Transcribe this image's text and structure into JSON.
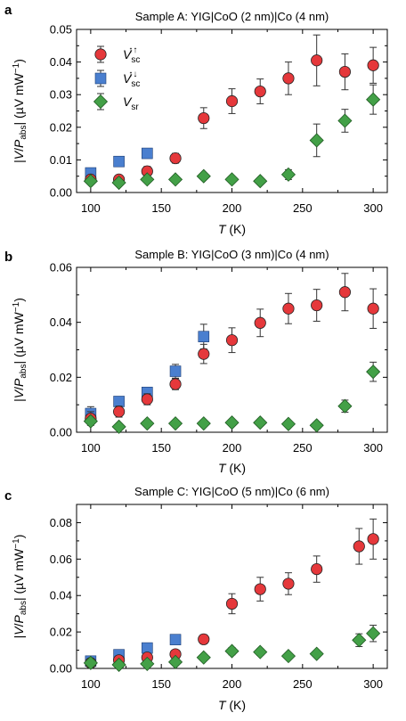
{
  "colors": {
    "red": "#e5383b",
    "blue": "#4a7fcf",
    "green": "#43a047"
  },
  "legend": [
    {
      "series": "sc_parallel",
      "label": "V",
      "sub": "sc",
      "sup": "↑↑",
      "marker": "circle",
      "color": "#e5383b"
    },
    {
      "series": "sc_anti",
      "label": "V",
      "sub": "sc",
      "sup": "↑↓",
      "marker": "square",
      "color": "#4a7fcf"
    },
    {
      "series": "sr",
      "label": "V",
      "sub": "sr",
      "sup": "",
      "marker": "diamond",
      "color": "#43a047"
    }
  ],
  "chart_data": [
    {
      "type": "scatter",
      "panel": "a",
      "title": "Sample A: YIG|CoO (2 nm)|Co (4 nm)",
      "xlabel": "T (K)",
      "ylabel": "|V/Pabs| (µV mW−1)",
      "xlim": [
        90,
        310
      ],
      "ylim": [
        0,
        0.05
      ],
      "xticks": [
        100,
        150,
        200,
        250,
        300
      ],
      "yticks": [
        0.0,
        0.01,
        0.02,
        0.03,
        0.04,
        0.05
      ],
      "ytick_labels": [
        "0.00",
        "0.01",
        "0.02",
        "0.03",
        "0.04",
        "0.05"
      ],
      "legend": true,
      "series": [
        {
          "id": "sc_parallel",
          "x": [
            100,
            120,
            140,
            160,
            180,
            200,
            220,
            240,
            260,
            280,
            300
          ],
          "y": [
            0.004,
            0.004,
            0.0065,
            0.0105,
            0.0228,
            0.028,
            0.031,
            0.035,
            0.0405,
            0.037,
            0.039
          ],
          "err": [
            0.001,
            0.001,
            0.0015,
            0.0015,
            0.0032,
            0.0038,
            0.0038,
            0.005,
            0.0078,
            0.0055,
            0.0055
          ]
        },
        {
          "id": "sc_anti",
          "x": [
            100,
            120,
            140
          ],
          "y": [
            0.006,
            0.0095,
            0.012
          ],
          "err": [
            0.0005,
            0.0005,
            0.0005
          ]
        },
        {
          "id": "sr",
          "x": [
            100,
            120,
            140,
            160,
            180,
            200,
            220,
            240,
            260,
            280,
            300
          ],
          "y": [
            0.0035,
            0.003,
            0.004,
            0.004,
            0.005,
            0.004,
            0.0035,
            0.0055,
            0.016,
            0.022,
            0.0285
          ],
          "err": [
            0.0005,
            0.0005,
            0.0005,
            0.0005,
            0.0005,
            0.0005,
            0.0005,
            0.0015,
            0.005,
            0.0035,
            0.0045
          ]
        }
      ]
    },
    {
      "type": "scatter",
      "panel": "b",
      "title": "Sample B: YIG|CoO (3 nm)|Co (4 nm)",
      "xlabel": "T (K)",
      "ylabel": "|V/Pabs| (µV mW−1)",
      "xlim": [
        90,
        310
      ],
      "ylim": [
        0,
        0.06
      ],
      "xticks": [
        100,
        150,
        200,
        250,
        300
      ],
      "yticks": [
        0.0,
        0.02,
        0.04,
        0.06
      ],
      "ytick_labels": [
        "0.00",
        "0.02",
        "0.04",
        "0.06"
      ],
      "legend": false,
      "series": [
        {
          "id": "sc_parallel",
          "x": [
            100,
            120,
            140,
            160,
            180,
            200,
            220,
            240,
            260,
            280,
            300
          ],
          "y": [
            0.005,
            0.0075,
            0.012,
            0.0175,
            0.0285,
            0.0335,
            0.0398,
            0.045,
            0.0462,
            0.051,
            0.045
          ],
          "err": [
            0.0025,
            0.002,
            0.002,
            0.002,
            0.0035,
            0.0045,
            0.005,
            0.0055,
            0.0058,
            0.0068,
            0.0072
          ]
        },
        {
          "id": "sc_anti",
          "x": [
            100,
            120,
            140,
            160,
            180
          ],
          "y": [
            0.0068,
            0.0112,
            0.0145,
            0.0222,
            0.0348
          ],
          "err": [
            0.0025,
            0.001,
            0.0015,
            0.0025,
            0.0045
          ]
        },
        {
          "id": "sr",
          "x": [
            100,
            120,
            140,
            160,
            180,
            200,
            220,
            240,
            260,
            280,
            300
          ],
          "y": [
            0.004,
            0.002,
            0.0032,
            0.0032,
            0.0032,
            0.0035,
            0.0035,
            0.003,
            0.0025,
            0.0095,
            0.022
          ],
          "err": [
            0.0008,
            0.0005,
            0.0008,
            0.0005,
            0.0005,
            0.0008,
            0.0008,
            0.0005,
            0.0005,
            0.0022,
            0.0035
          ]
        }
      ]
    },
    {
      "type": "scatter",
      "panel": "c",
      "title": "Sample C: YIG|CoO (5 nm)|Co (6 nm)",
      "xlabel": "T (K)",
      "ylabel": "|V/Pabs| (µV mW−1)",
      "xlim": [
        90,
        310
      ],
      "ylim": [
        0,
        0.09
      ],
      "xticks": [
        100,
        150,
        200,
        250,
        300
      ],
      "yticks": [
        0.0,
        0.02,
        0.04,
        0.06,
        0.08
      ],
      "ytick_labels": [
        "0.00",
        "0.02",
        "0.04",
        "0.06",
        "0.08"
      ],
      "legend": false,
      "series": [
        {
          "id": "sc_parallel",
          "x": [
            100,
            120,
            140,
            160,
            180,
            200,
            220,
            240,
            260,
            290,
            300
          ],
          "y": [
            0.003,
            0.0045,
            0.006,
            0.0078,
            0.016,
            0.0355,
            0.0435,
            0.0465,
            0.0545,
            0.067,
            0.071
          ],
          "err": [
            0.0008,
            0.001,
            0.001,
            0.0012,
            0.0025,
            0.0055,
            0.0065,
            0.006,
            0.0072,
            0.0098,
            0.011
          ]
        },
        {
          "id": "sc_anti",
          "x": [
            100,
            120,
            140,
            160
          ],
          "y": [
            0.004,
            0.0075,
            0.0112,
            0.0158
          ],
          "err": [
            0.001,
            0.001,
            0.001,
            0.0015
          ]
        },
        {
          "id": "sr",
          "x": [
            100,
            120,
            140,
            160,
            180,
            200,
            220,
            240,
            260,
            290,
            300
          ],
          "y": [
            0.003,
            0.002,
            0.0025,
            0.0035,
            0.006,
            0.0095,
            0.009,
            0.0068,
            0.008,
            0.0155,
            0.0192
          ],
          "err": [
            0.0005,
            0.0005,
            0.0005,
            0.0008,
            0.0015,
            0.002,
            0.0018,
            0.0015,
            0.0015,
            0.0035,
            0.0045
          ]
        }
      ]
    }
  ]
}
